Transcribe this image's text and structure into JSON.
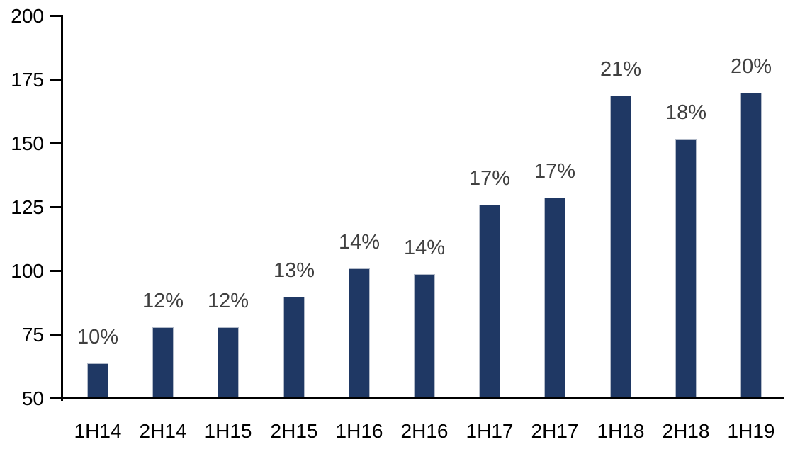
{
  "chart_data": {
    "type": "bar",
    "title": "",
    "xlabel": "",
    "ylabel": "",
    "categories": [
      "1H14",
      "2H14",
      "1H15",
      "2H15",
      "1H16",
      "2H16",
      "1H17",
      "2H17",
      "1H18",
      "2H18",
      "1H19"
    ],
    "values": [
      64,
      78,
      78,
      90,
      101,
      99,
      126,
      129,
      169,
      152,
      170
    ],
    "bar_labels": [
      "10%",
      "12%",
      "12%",
      "13%",
      "14%",
      "14%",
      "17%",
      "17%",
      "21%",
      "18%",
      "20%"
    ],
    "ylim": [
      50,
      200
    ],
    "y_ticks": [
      50,
      75,
      100,
      125,
      150,
      175,
      200
    ],
    "grid": false,
    "legend": false,
    "colors": {
      "bar_fill": "#1F3864",
      "bar_edge": "#B3BBC9",
      "data_label": "#404040",
      "axis_text": "#000000",
      "axis_line": "#000000",
      "background": "#FFFFFF"
    }
  }
}
